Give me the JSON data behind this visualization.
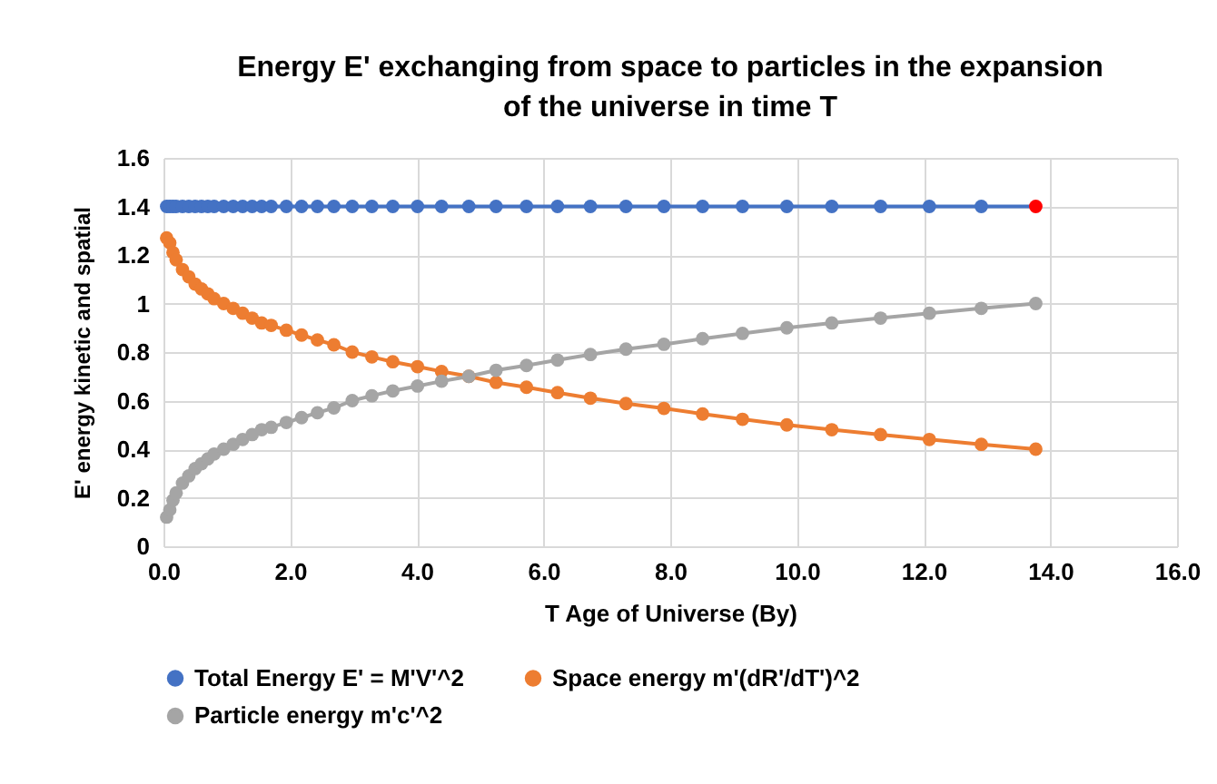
{
  "chart_data": {
    "type": "line",
    "title": "Energy E' exchanging from space to particles in the expansion of the universe in time T",
    "xlabel": "T    Age of Universe (By)",
    "ylabel": "E' energy kinetic and spatial",
    "x": [
      0.05,
      0.1,
      0.15,
      0.2,
      0.3,
      0.4,
      0.5,
      0.6,
      0.7,
      0.8,
      0.95,
      1.1,
      1.25,
      1.4,
      1.55,
      1.7,
      1.94,
      2.18,
      2.43,
      2.69,
      2.98,
      3.29,
      3.62,
      4.01,
      4.39,
      4.82,
      5.25,
      5.73,
      6.22,
      6.74,
      7.3,
      7.9,
      8.51,
      9.14,
      9.84,
      10.55,
      11.32,
      12.09,
      12.91,
      13.77
    ],
    "series": [
      {
        "name": "Total Energy E' = M'V'^2",
        "color": "#4472c4",
        "values": [
          1.4,
          1.4,
          1.4,
          1.4,
          1.4,
          1.4,
          1.4,
          1.4,
          1.4,
          1.4,
          1.4,
          1.4,
          1.4,
          1.4,
          1.4,
          1.4,
          1.4,
          1.4,
          1.4,
          1.4,
          1.4,
          1.4,
          1.4,
          1.4,
          1.4,
          1.4,
          1.4,
          1.4,
          1.4,
          1.4,
          1.4,
          1.4,
          1.4,
          1.4,
          1.4,
          1.4,
          1.4,
          1.4,
          1.4,
          1.4
        ],
        "colors": [
          "#4472c4",
          "#4472c4",
          "#4472c4",
          "#4472c4",
          "#4472c4",
          "#4472c4",
          "#4472c4",
          "#4472c4",
          "#4472c4",
          "#4472c4",
          "#4472c4",
          "#4472c4",
          "#4472c4",
          "#4472c4",
          "#4472c4",
          "#4472c4",
          "#4472c4",
          "#4472c4",
          "#4472c4",
          "#4472c4",
          "#4472c4",
          "#4472c4",
          "#4472c4",
          "#4472c4",
          "#4472c4",
          "#4472c4",
          "#4472c4",
          "#4472c4",
          "#4472c4",
          "#4472c4",
          "#4472c4",
          "#4472c4",
          "#4472c4",
          "#4472c4",
          "#4472c4",
          "#4472c4",
          "#4472c4",
          "#4472c4",
          "#4472c4",
          "#ff0000"
        ]
      },
      {
        "name": "Space energy m'(dR'/dT')^2",
        "color": "#ed7d31",
        "values": [
          1.27,
          1.25,
          1.21,
          1.18,
          1.14,
          1.11,
          1.08,
          1.06,
          1.04,
          1.02,
          1.0,
          0.98,
          0.96,
          0.94,
          0.92,
          0.91,
          0.89,
          0.87,
          0.85,
          0.83,
          0.8,
          0.78,
          0.76,
          0.74,
          0.72,
          0.7,
          0.675,
          0.655,
          0.633,
          0.61,
          0.588,
          0.568,
          0.545,
          0.523,
          0.5,
          0.48,
          0.46,
          0.44,
          0.42,
          0.4
        ]
      },
      {
        "name": "Particle energy m'c'^2",
        "color": "#a5a5a5",
        "values": [
          0.12,
          0.15,
          0.19,
          0.22,
          0.26,
          0.29,
          0.32,
          0.34,
          0.36,
          0.38,
          0.4,
          0.42,
          0.44,
          0.46,
          0.48,
          0.49,
          0.51,
          0.53,
          0.55,
          0.57,
          0.6,
          0.62,
          0.64,
          0.66,
          0.68,
          0.7,
          0.725,
          0.745,
          0.767,
          0.79,
          0.812,
          0.832,
          0.855,
          0.877,
          0.9,
          0.92,
          0.94,
          0.96,
          0.98,
          1.0
        ]
      }
    ],
    "xlim": [
      0,
      16
    ],
    "xticks": [
      {
        "value": 0,
        "label": "0.0"
      },
      {
        "value": 2,
        "label": "2.0"
      },
      {
        "value": 4,
        "label": "4.0"
      },
      {
        "value": 6,
        "label": "6.0"
      },
      {
        "value": 8,
        "label": "8.0"
      },
      {
        "value": 10,
        "label": "10.0"
      },
      {
        "value": 12,
        "label": "12.0"
      },
      {
        "value": 14,
        "label": "14.0"
      },
      {
        "value": 16,
        "label": "16.0"
      }
    ],
    "ylim": [
      0,
      1.6
    ],
    "yticks": [
      0,
      0.2,
      0.4,
      0.6,
      0.8,
      1,
      1.2,
      1.4,
      1.6
    ],
    "grid": true,
    "legend": "bottom",
    "marker": "circle",
    "line_style": "solid"
  }
}
